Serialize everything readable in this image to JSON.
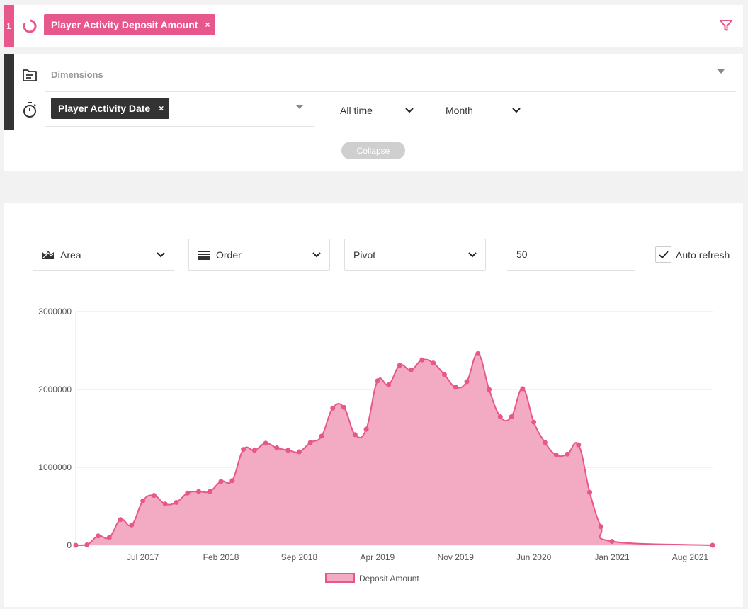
{
  "measure": {
    "index": "1",
    "chip_label": "Player Activity Deposit Amount",
    "remove": "×"
  },
  "dimensions": {
    "label": "Dimensions",
    "time_dimension_chip": "Player Activity Date",
    "remove": "×",
    "date_range": "All time",
    "granularity": "Month",
    "collapse_label": "Collapse"
  },
  "controls": {
    "chart_type": "Area",
    "order": "Order",
    "pivot": "Pivot",
    "limit": "50",
    "auto_refresh_label": "Auto refresh",
    "auto_refresh_checked": true
  },
  "colors": {
    "accent": "#e8578c",
    "area_fill": "#f3aac3",
    "dark": "#333333"
  },
  "chart_data": {
    "type": "area",
    "title": "",
    "xlabel": "",
    "ylabel": "",
    "ylim": [
      0,
      3000000
    ],
    "yticks": [
      "0",
      "1000000",
      "2000000",
      "3000000"
    ],
    "xtick_labels": [
      "Jul 2017",
      "Feb 2018",
      "Sep 2018",
      "Apr 2019",
      "Nov 2019",
      "Jun 2020",
      "Jan 2021",
      "Aug 2021"
    ],
    "legend": {
      "position": "bottom",
      "entries": [
        "Deposit Amount"
      ]
    },
    "grid": true,
    "series": [
      {
        "name": "Deposit Amount",
        "x": [
          "2017-01",
          "2017-02",
          "2017-03",
          "2017-04",
          "2017-05",
          "2017-06",
          "2017-07",
          "2017-08",
          "2017-09",
          "2017-10",
          "2017-11",
          "2017-12",
          "2018-01",
          "2018-02",
          "2018-03",
          "2018-04",
          "2018-05",
          "2018-06",
          "2018-07",
          "2018-08",
          "2018-09",
          "2018-10",
          "2018-11",
          "2018-12",
          "2019-01",
          "2019-02",
          "2019-03",
          "2019-04",
          "2019-05",
          "2019-06",
          "2019-07",
          "2019-08",
          "2019-09",
          "2019-10",
          "2019-11",
          "2019-12",
          "2020-01",
          "2020-02",
          "2020-03",
          "2020-04",
          "2020-05",
          "2020-06",
          "2020-07",
          "2020-08",
          "2020-09",
          "2020-10",
          "2020-11",
          "2020-12",
          "2021-01",
          "2021-10"
        ],
        "values": [
          0,
          5000,
          120000,
          100000,
          330000,
          260000,
          570000,
          640000,
          530000,
          550000,
          670000,
          690000,
          690000,
          820000,
          830000,
          1230000,
          1220000,
          1310000,
          1250000,
          1220000,
          1200000,
          1320000,
          1400000,
          1760000,
          1770000,
          1420000,
          1490000,
          2110000,
          2060000,
          2310000,
          2250000,
          2380000,
          2340000,
          2190000,
          2030000,
          2100000,
          2460000,
          2000000,
          1650000,
          1650000,
          2010000,
          1580000,
          1320000,
          1160000,
          1170000,
          1290000,
          680000,
          240000,
          50000,
          0
        ]
      }
    ]
  }
}
